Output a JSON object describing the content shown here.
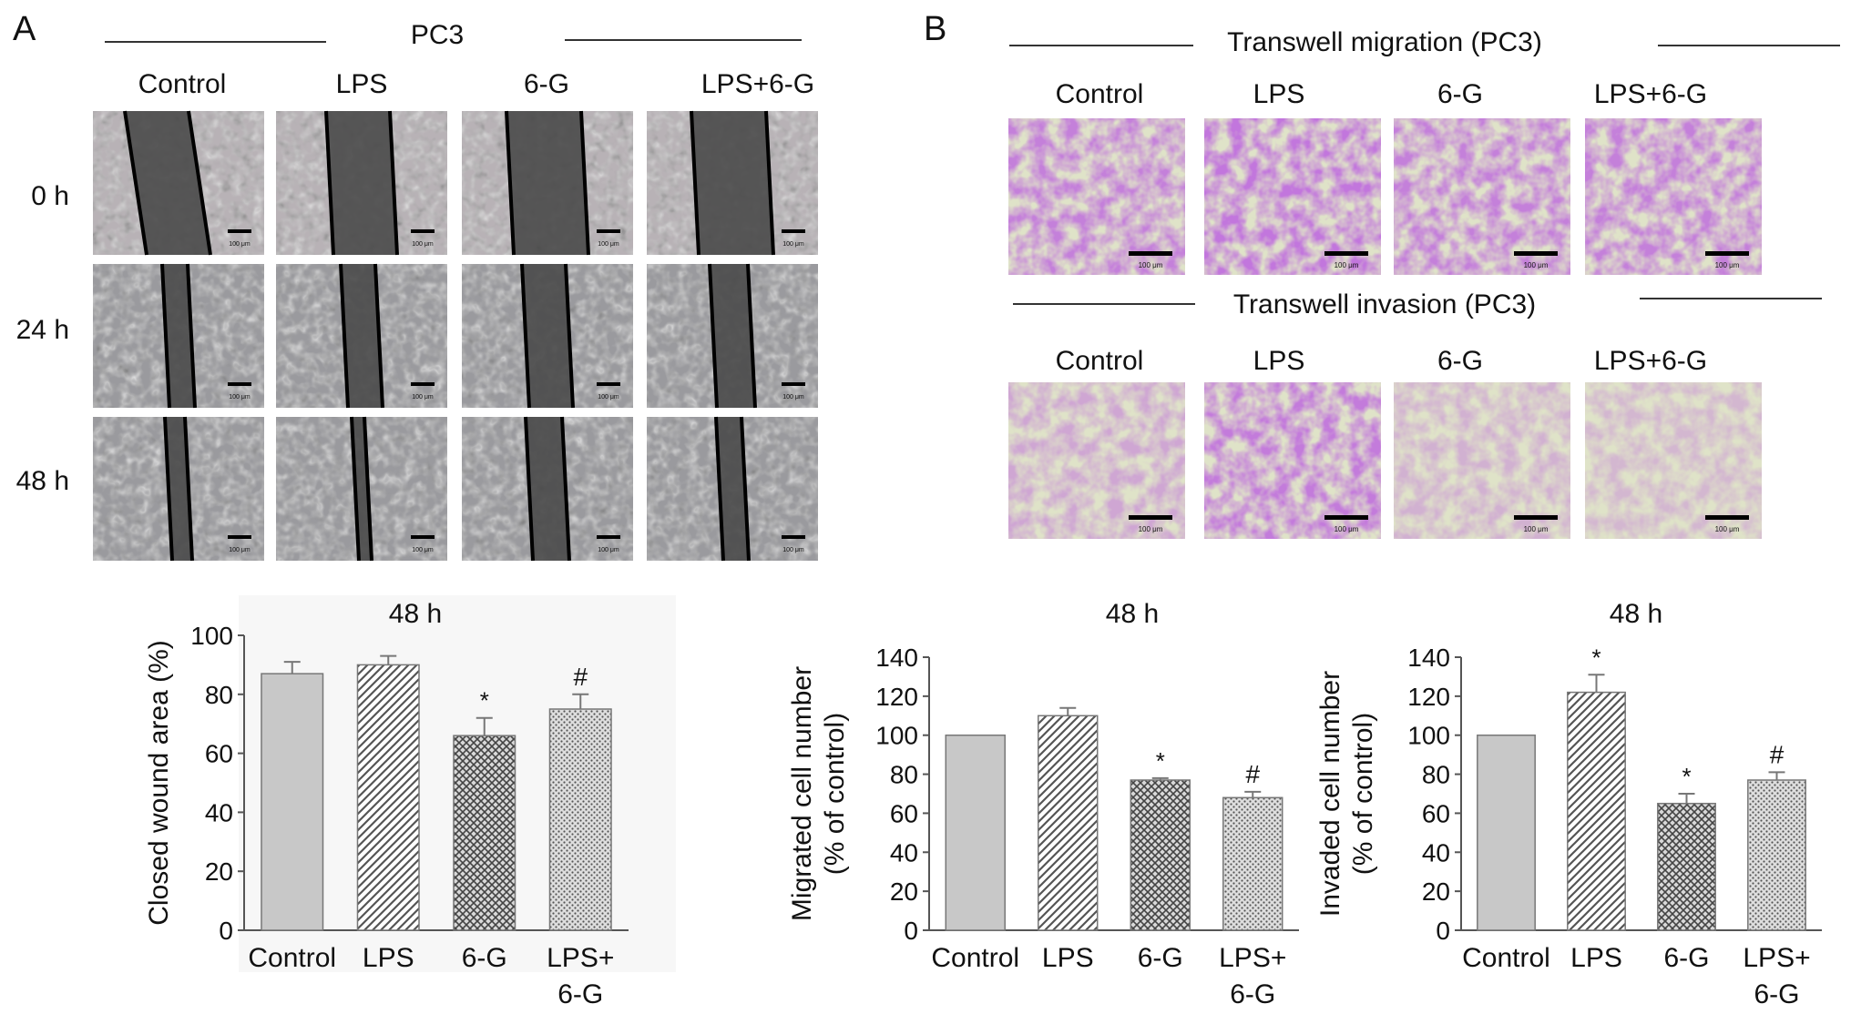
{
  "panel_a": {
    "letter": "A",
    "header": "PC3",
    "columns": [
      "Control",
      "LPS",
      "6-G",
      "LPS+6-G"
    ],
    "rows": [
      "0 h",
      "24 h",
      "48 h"
    ],
    "scale_bar_label": "100 μm"
  },
  "panel_b": {
    "letter": "B",
    "migration_header": "Transwell migration (PC3)",
    "invasion_header": "Transwell invasion (PC3)",
    "columns": [
      "Control",
      "LPS",
      "6-G",
      "LPS+6-G"
    ],
    "scale_bar_label": "100 μm"
  },
  "colors": {
    "bar_fill": "#c8c8c8",
    "bar_edge": "#777777",
    "axis": "#555555",
    "stain_purple": "#8a2fb8",
    "wound_dark": "#4a4a4a"
  },
  "chart_data": [
    {
      "type": "bar",
      "title": "48 h",
      "ylabel": "Closed wound area (%)",
      "categories": [
        "Control",
        "LPS",
        "6-G",
        "LPS+\n6-G"
      ],
      "values": [
        87,
        90,
        66,
        75
      ],
      "errors": [
        4,
        3,
        6,
        5
      ],
      "annotations": [
        "",
        "",
        "*",
        "#"
      ],
      "ylim": [
        0,
        100
      ],
      "yticks": [
        0,
        20,
        40,
        60,
        80,
        100
      ],
      "patterns": [
        "solid",
        "diag",
        "cross",
        "dots"
      ]
    },
    {
      "type": "bar",
      "title": "48 h",
      "ylabel": "Migrated cell number\n(% of control)",
      "categories": [
        "Control",
        "LPS",
        "6-G",
        "LPS+\n6-G"
      ],
      "values": [
        100,
        110,
        77,
        68
      ],
      "errors": [
        0,
        4,
        1,
        3
      ],
      "annotations": [
        "",
        "",
        "*",
        "#"
      ],
      "ylim": [
        0,
        140
      ],
      "yticks": [
        0,
        20,
        40,
        60,
        80,
        100,
        120,
        140
      ],
      "patterns": [
        "solid",
        "diag",
        "cross",
        "dots"
      ]
    },
    {
      "type": "bar",
      "title": "48 h",
      "ylabel": "Invaded cell number\n(% of control)",
      "categories": [
        "Control",
        "LPS",
        "6-G",
        "LPS+\n6-G"
      ],
      "values": [
        100,
        122,
        65,
        77
      ],
      "errors": [
        0,
        9,
        5,
        4
      ],
      "annotations": [
        "",
        "*",
        "*",
        "#"
      ],
      "ylim": [
        0,
        140
      ],
      "yticks": [
        0,
        20,
        40,
        60,
        80,
        100,
        120,
        140
      ],
      "patterns": [
        "solid",
        "diag",
        "cross",
        "dots"
      ]
    }
  ]
}
